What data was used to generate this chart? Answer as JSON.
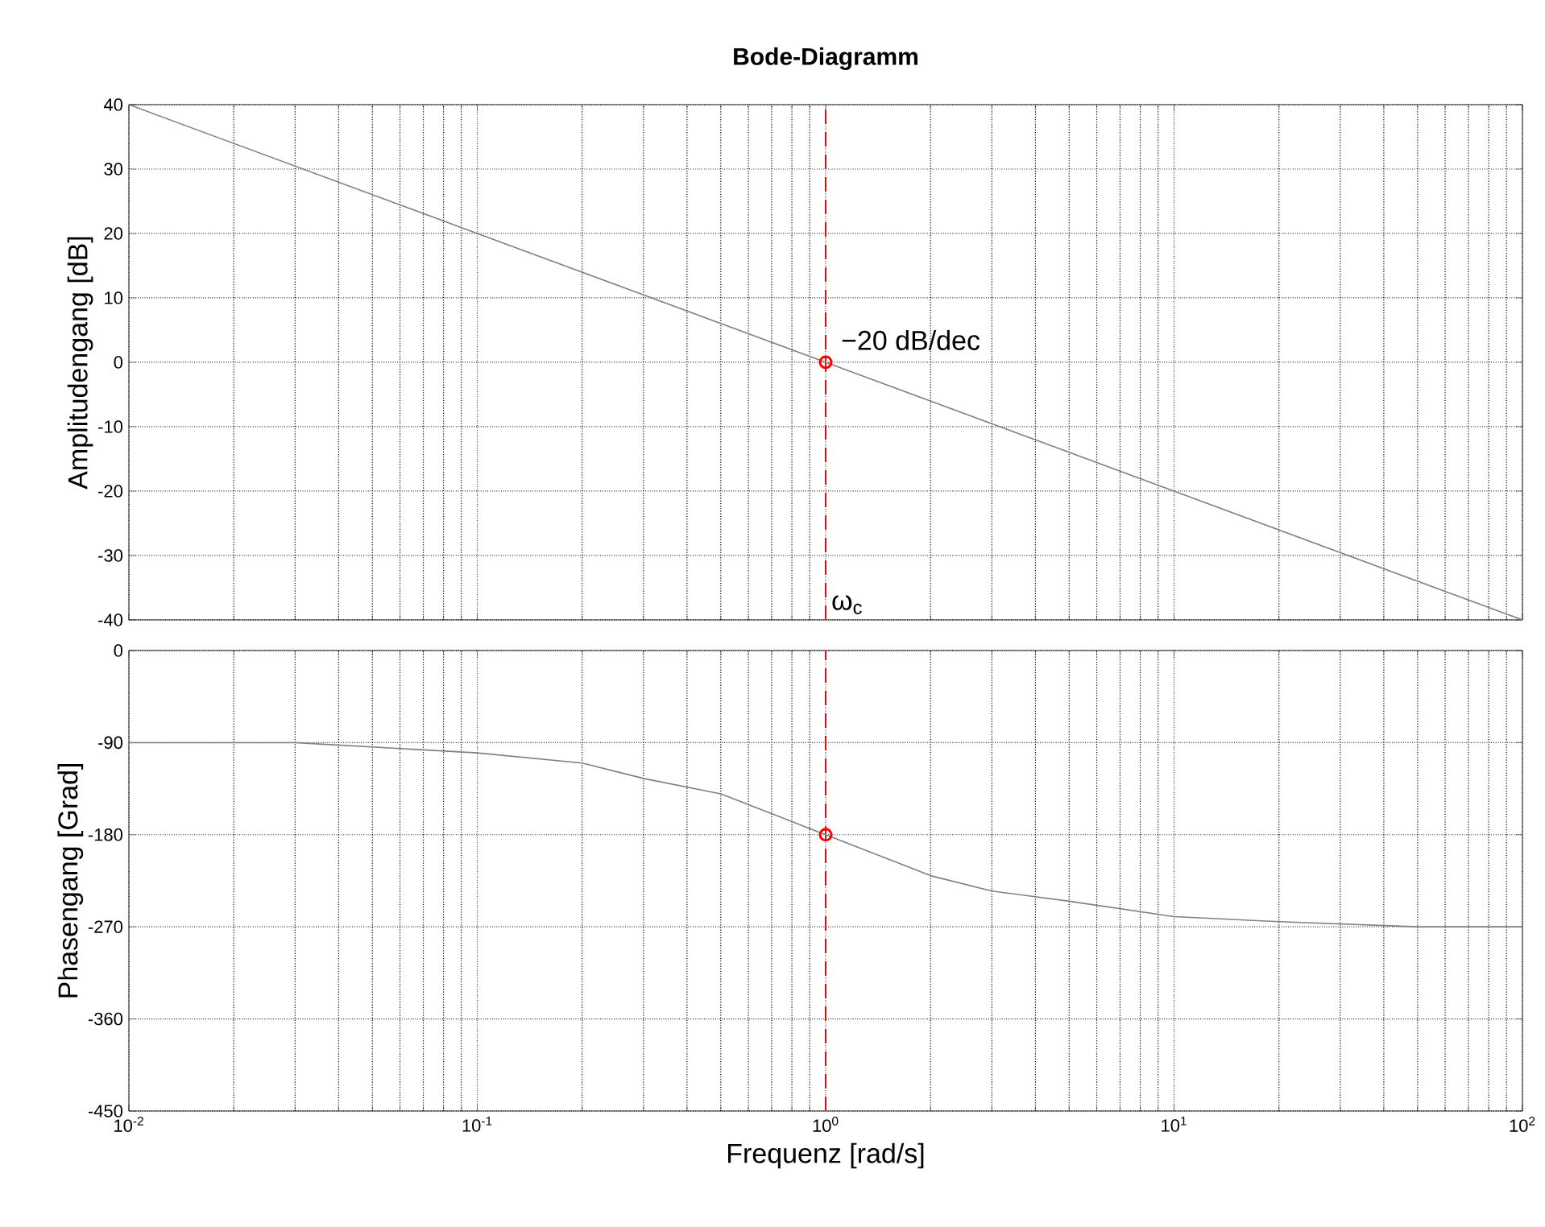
{
  "chart_data": [
    {
      "type": "line",
      "title": "Bode-Diagramm",
      "ylabel": "Amplitudengang [dB]",
      "log": "x",
      "grid": true,
      "tick_labels": "y",
      "xlim": [
        0.01,
        100
      ],
      "xticks": [
        {
          "value": 0.01,
          "label": null
        },
        {
          "value": 0.1,
          "label": null
        },
        {
          "value": 1,
          "label": null
        },
        {
          "value": 10,
          "label": null
        },
        {
          "value": 100,
          "label": null
        }
      ],
      "ylim": [
        -40,
        40
      ],
      "yticks": [
        -40,
        -30,
        -20,
        -10,
        0,
        10,
        20,
        30,
        40
      ],
      "series": [
        {
          "color": "#808080",
          "x": [
            0.01,
            0.1,
            1,
            10,
            100
          ],
          "values": [
            40,
            20,
            0,
            -20,
            -40
          ]
        },
        {
          "type": "scatter",
          "marker": "circle",
          "color": "#ff0000",
          "x": [
            1
          ],
          "values": [
            0
          ]
        }
      ],
      "ref_lines": [
        {
          "axis": "x",
          "value": 1,
          "label": "ω$_{c}$",
          "color": "#ff0000",
          "line_style": "dashed"
        }
      ],
      "annotations": [
        {
          "text": "−20 dB/dec",
          "x": 1,
          "y": 0
        }
      ]
    },
    {
      "type": "line",
      "ylabel": "Phasengang [Grad]",
      "xlabel": "Frequenz [rad/s]",
      "log": "x",
      "grid": true,
      "xlim": [
        0.01,
        100
      ],
      "xticks": [
        {
          "value": 0.01,
          "label": "10$^{-2}$"
        },
        {
          "value": 0.1,
          "label": "10$^{-1}$"
        },
        {
          "value": 1,
          "label": "10$^{0}$"
        },
        {
          "value": 10,
          "label": "10$^{1}$"
        },
        {
          "value": 100,
          "label": "10$^{2}$"
        }
      ],
      "ylim": [
        -450,
        0
      ],
      "yticks": [
        -450,
        -360,
        -270,
        -180,
        -90,
        0
      ],
      "series": [
        {
          "color": "#808080",
          "x": [
            0.01,
            0.03,
            0.1,
            0.2,
            0.3,
            0.5,
            1,
            2,
            3,
            5,
            10,
            20,
            50,
            100
          ],
          "values": [
            -90,
            -90,
            -100,
            -110,
            -125,
            -140,
            -180,
            -220,
            -235,
            -245,
            -260,
            -265,
            -270,
            -270
          ]
        },
        {
          "type": "scatter",
          "marker": "circle",
          "color": "#ff0000",
          "x": [
            1
          ],
          "values": [
            -180
          ]
        }
      ],
      "ref_lines": [
        {
          "axis": "x",
          "value": 1,
          "color": "#ff0000",
          "line_style": "dashed"
        }
      ]
    }
  ]
}
